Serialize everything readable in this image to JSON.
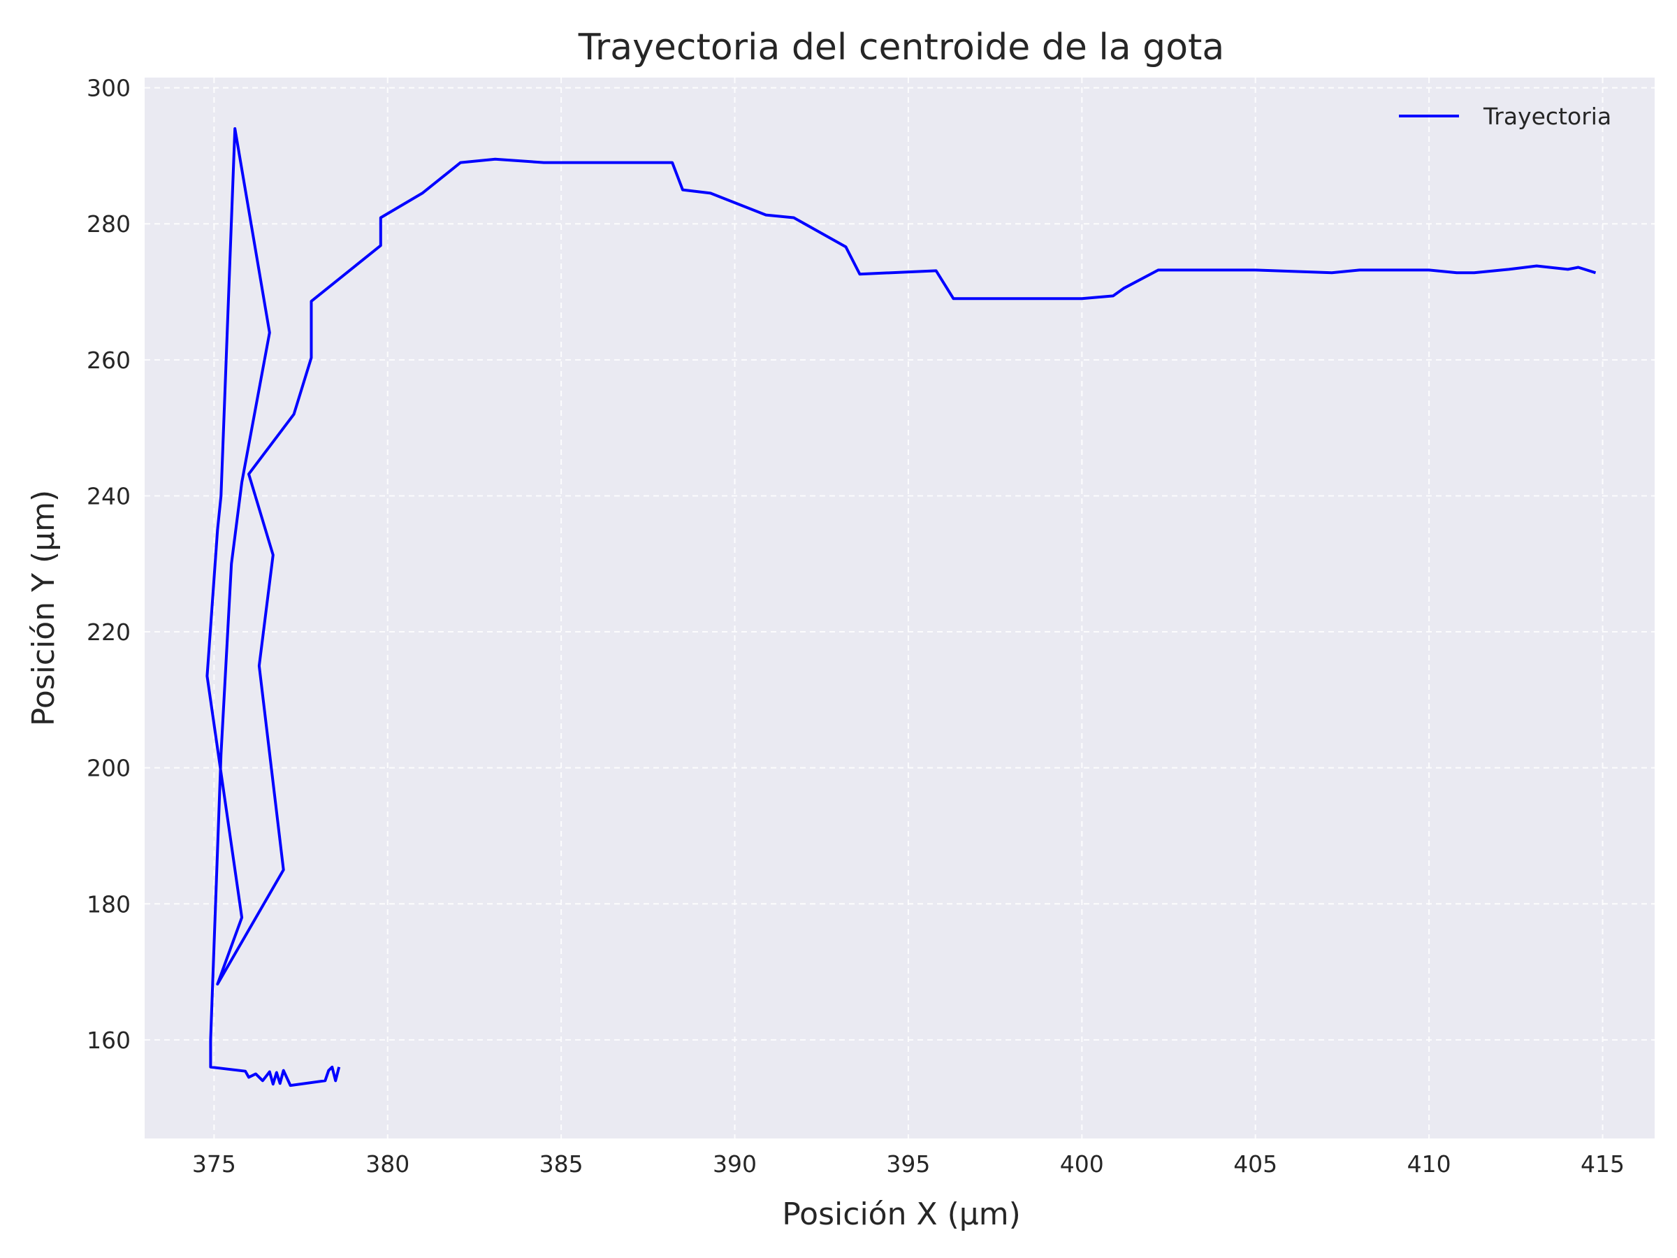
{
  "chart_data": {
    "type": "line",
    "title": "Trayectoria del centroide de la gota",
    "xlabel": "Posición X (µm)",
    "ylabel": "Posición Y (µm)",
    "xlim": [
      373.0,
      416.5
    ],
    "ylim": [
      145.5,
      301.5
    ],
    "xticks": [
      375,
      380,
      385,
      390,
      395,
      400,
      405,
      410,
      415
    ],
    "yticks": [
      160,
      180,
      200,
      220,
      240,
      260,
      280,
      300
    ],
    "grid": true,
    "legend": {
      "position": "top-right",
      "entries": [
        "Trayectoria"
      ]
    },
    "colors": {
      "line": "#0000ff",
      "plot_bg": "#eaeaf2",
      "grid": "#ffffff"
    },
    "series": [
      {
        "name": "Trayectoria",
        "points": [
          [
            378.6,
            156.0
          ],
          [
            378.5,
            154.0
          ],
          [
            378.4,
            156.0
          ],
          [
            378.3,
            155.5
          ],
          [
            378.2,
            154.0
          ],
          [
            377.2,
            153.3
          ],
          [
            377.0,
            155.5
          ],
          [
            376.9,
            153.6
          ],
          [
            376.8,
            155.2
          ],
          [
            376.7,
            153.5
          ],
          [
            376.6,
            155.3
          ],
          [
            376.4,
            154.0
          ],
          [
            376.2,
            155.0
          ],
          [
            376.0,
            154.5
          ],
          [
            375.9,
            155.4
          ],
          [
            374.9,
            156.0
          ],
          [
            374.9,
            160.0
          ],
          [
            375.2,
            202.0
          ],
          [
            375.5,
            230.0
          ],
          [
            375.8,
            242.0
          ],
          [
            376.6,
            264.0
          ],
          [
            375.6,
            294.0
          ],
          [
            375.2,
            240.0
          ],
          [
            375.1,
            235.0
          ],
          [
            374.8,
            213.5
          ],
          [
            375.8,
            178.0
          ],
          [
            375.1,
            168.2
          ],
          [
            377.0,
            185.0
          ],
          [
            376.3,
            215.0
          ],
          [
            376.7,
            231.3
          ],
          [
            376.0,
            243.2
          ],
          [
            377.3,
            252.0
          ],
          [
            377.8,
            260.3
          ],
          [
            377.8,
            268.6
          ],
          [
            379.8,
            276.8
          ],
          [
            379.8,
            280.9
          ],
          [
            381.0,
            284.5
          ],
          [
            382.1,
            289.0
          ],
          [
            383.1,
            289.5
          ],
          [
            384.5,
            289.0
          ],
          [
            386.0,
            289.0
          ],
          [
            388.2,
            289.0
          ],
          [
            388.5,
            285.0
          ],
          [
            389.3,
            284.5
          ],
          [
            390.9,
            281.3
          ],
          [
            391.7,
            280.9
          ],
          [
            393.2,
            276.6
          ],
          [
            393.6,
            272.6
          ],
          [
            395.8,
            273.1
          ],
          [
            396.3,
            269.0
          ],
          [
            398.0,
            269.0
          ],
          [
            400.0,
            269.0
          ],
          [
            400.9,
            269.4
          ],
          [
            401.2,
            270.5
          ],
          [
            402.2,
            273.2
          ],
          [
            404.0,
            273.2
          ],
          [
            405.0,
            273.2
          ],
          [
            407.2,
            272.8
          ],
          [
            408.0,
            273.2
          ],
          [
            410.0,
            273.2
          ],
          [
            410.8,
            272.8
          ],
          [
            411.3,
            272.8
          ],
          [
            412.3,
            273.3
          ],
          [
            413.1,
            273.8
          ],
          [
            414.0,
            273.3
          ],
          [
            414.3,
            273.6
          ],
          [
            414.8,
            272.8
          ]
        ]
      }
    ]
  }
}
